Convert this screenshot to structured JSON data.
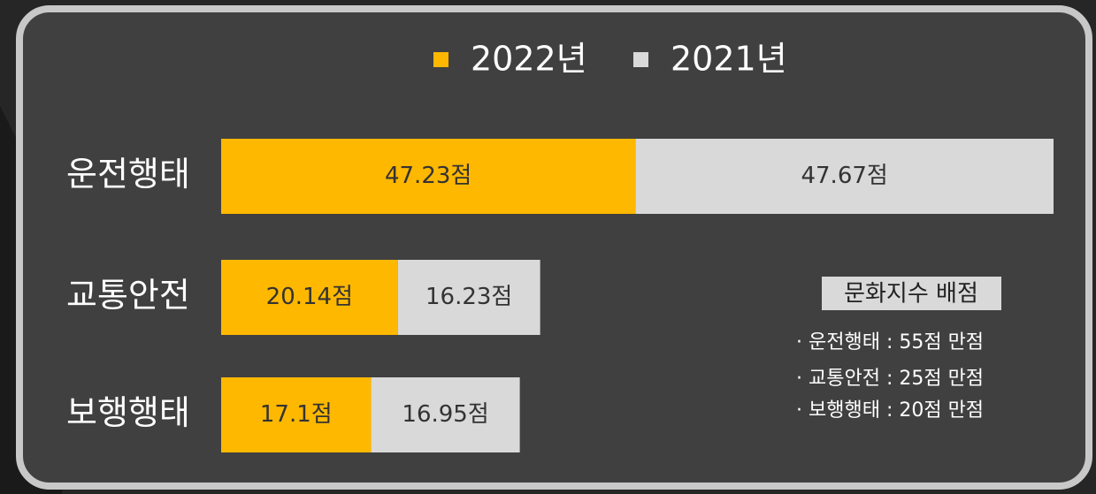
{
  "chart_data": {
    "type": "bar",
    "orientation": "horizontal",
    "stacked": true,
    "categories": [
      "운전행태",
      "교통안전",
      "보행행태"
    ],
    "series": [
      {
        "name": "2022년",
        "color": "#ffb800",
        "values": [
          47.23,
          20.14,
          17.1
        ],
        "value_labels": [
          "47.23점",
          "20.14점",
          "17.1점"
        ]
      },
      {
        "name": "2021년",
        "color": "#d9d9d9",
        "values": [
          47.67,
          16.23,
          16.95
        ],
        "value_labels": [
          "47.67점",
          "16.23점",
          "16.95점"
        ]
      }
    ],
    "legend": "top",
    "annotation": {
      "title": "문화지수 배점",
      "items": [
        "· 운전행태 : 55점 만점",
        "· 교통안전 : 25점 만점",
        "· 보행행태 : 20점 만점"
      ]
    }
  }
}
